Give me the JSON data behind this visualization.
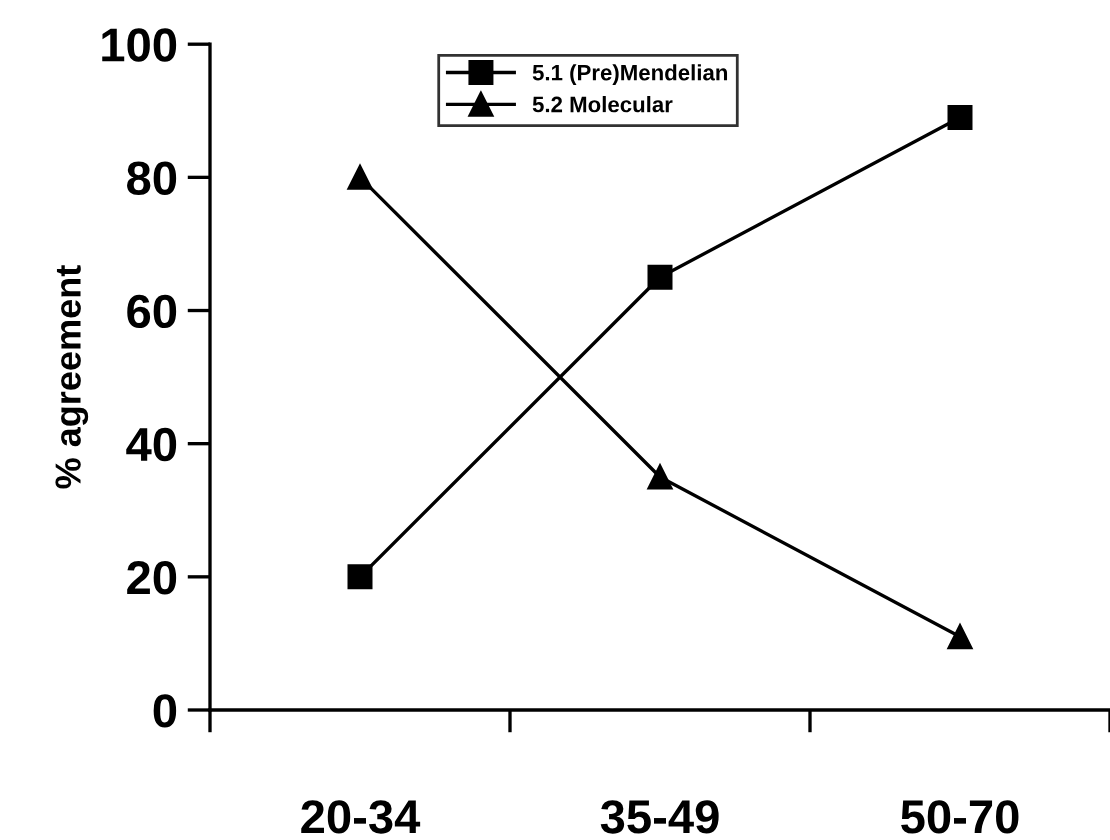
{
  "chart_data": {
    "type": "line",
    "ylabel": "% agreement",
    "categories": [
      "20-34",
      "35-49",
      "50-70"
    ],
    "series": [
      {
        "name": "5.1 (Pre)Mendelian",
        "color": "#000000",
        "marker": "square",
        "values": [
          20,
          65,
          89
        ]
      },
      {
        "name": "5.2 Molecular",
        "color": "#000000",
        "marker": "triangle",
        "values": [
          80,
          35,
          11
        ]
      }
    ],
    "ylim": [
      0,
      100
    ],
    "yticks": [
      0,
      20,
      40,
      60,
      80,
      100
    ],
    "grid": false,
    "legend": "top",
    "line_style": "solid"
  }
}
